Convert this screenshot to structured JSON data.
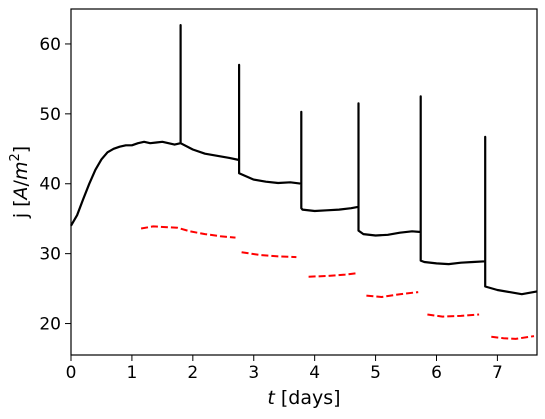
{
  "chart_data": {
    "type": "line",
    "title": "",
    "xlabel": "t [days]",
    "ylabel": "j [A/m²]",
    "xlim": [
      0,
      7.65
    ],
    "ylim": [
      15.5,
      65
    ],
    "xticks": [
      0,
      1,
      2,
      3,
      4,
      5,
      6,
      7
    ],
    "yticks": [
      20,
      30,
      40,
      50,
      60
    ],
    "grid": false,
    "legend": "none",
    "series": [
      {
        "color": "#000000",
        "style": "solid",
        "x": [
          0.0,
          0.1,
          0.2,
          0.3,
          0.4,
          0.5,
          0.6,
          0.7,
          0.8,
          0.9,
          1.0,
          1.1,
          1.2,
          1.3,
          1.4,
          1.5,
          1.6,
          1.7,
          1.8,
          1.8,
          1.8,
          2.0,
          2.2,
          2.4,
          2.6,
          2.76,
          2.76,
          2.76,
          3.0,
          3.2,
          3.4,
          3.6,
          3.78,
          3.78,
          3.78,
          3.8,
          4.0,
          4.2,
          4.4,
          4.6,
          4.72,
          4.72,
          4.72,
          4.8,
          5.0,
          5.2,
          5.4,
          5.6,
          5.74,
          5.74,
          5.74,
          5.8,
          6.0,
          6.2,
          6.4,
          6.6,
          6.8,
          6.8,
          6.8,
          7.0,
          7.2,
          7.4,
          7.65
        ],
        "y": [
          34.0,
          35.5,
          37.8,
          40.0,
          42.0,
          43.5,
          44.5,
          45.0,
          45.3,
          45.5,
          45.5,
          45.8,
          46.0,
          45.8,
          45.9,
          46.0,
          45.8,
          45.6,
          45.8,
          62.7,
          45.8,
          44.9,
          44.3,
          44.0,
          43.7,
          43.4,
          57.0,
          41.5,
          40.6,
          40.3,
          40.1,
          40.2,
          40.0,
          50.3,
          36.5,
          36.3,
          36.1,
          36.2,
          36.3,
          36.5,
          36.7,
          51.5,
          33.3,
          32.8,
          32.6,
          32.7,
          33.0,
          33.2,
          33.1,
          52.5,
          29.0,
          28.8,
          28.6,
          28.5,
          28.7,
          28.8,
          28.9,
          46.7,
          25.3,
          24.8,
          24.5,
          24.2,
          24.6
        ]
      },
      {
        "color": "#ff0000",
        "style": "dashed",
        "segments": [
          {
            "x": [
              1.15,
              1.35,
              1.55,
              1.75,
              1.95,
              2.2,
              2.45,
              2.7
            ],
            "y": [
              33.6,
              33.9,
              33.8,
              33.7,
              33.2,
              32.8,
              32.5,
              32.3
            ]
          },
          {
            "x": [
              2.8,
              3.1,
              3.4,
              3.7
            ],
            "y": [
              30.2,
              29.8,
              29.6,
              29.5
            ]
          },
          {
            "x": [
              3.9,
              4.2,
              4.5,
              4.7
            ],
            "y": [
              26.7,
              26.8,
              27.0,
              27.2
            ]
          },
          {
            "x": [
              4.85,
              5.1,
              5.4,
              5.7
            ],
            "y": [
              24.0,
              23.8,
              24.2,
              24.5
            ]
          },
          {
            "x": [
              5.85,
              6.1,
              6.4,
              6.7
            ],
            "y": [
              21.3,
              21.0,
              21.1,
              21.3
            ]
          },
          {
            "x": [
              6.9,
              7.1,
              7.3,
              7.6
            ],
            "y": [
              18.1,
              17.9,
              17.8,
              18.2
            ]
          }
        ]
      }
    ]
  }
}
